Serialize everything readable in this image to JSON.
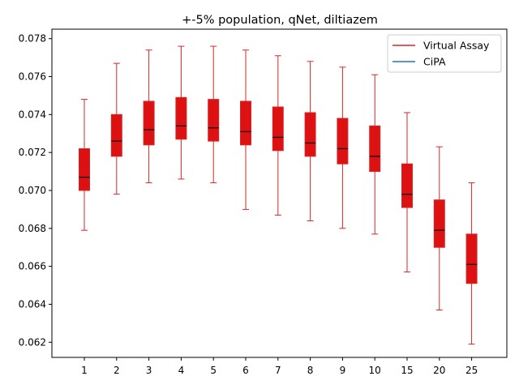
{
  "chart_data": {
    "type": "box",
    "title": "+-5% population, qNet, diltiazem",
    "xlabel": "",
    "ylabel": "",
    "categories": [
      "1",
      "2",
      "3",
      "4",
      "5",
      "6",
      "7",
      "8",
      "9",
      "10",
      "15",
      "20",
      "25"
    ],
    "ylim": [
      0.0612,
      0.0785
    ],
    "yticks": [
      0.062,
      0.064,
      0.066,
      0.068,
      0.07,
      0.072,
      0.074,
      0.076,
      0.078
    ],
    "ytick_labels": [
      "0.062",
      "0.064",
      "0.066",
      "0.068",
      "0.070",
      "0.072",
      "0.074",
      "0.076",
      "0.078"
    ],
    "grid": false,
    "legend": {
      "placement": "top-right",
      "entries": [
        {
          "name": "Virtual Assay",
          "color": "#d62728"
        },
        {
          "name": "CiPA",
          "color": "#1f77b4"
        }
      ]
    },
    "series": [
      {
        "name": "Virtual Assay",
        "color": "#d62728",
        "fill": "#dd1111",
        "median_color": "#000000",
        "boxes": [
          {
            "whislo": 0.0679,
            "q1": 0.07,
            "med": 0.0707,
            "q3": 0.0722,
            "whishi": 0.0748
          },
          {
            "whislo": 0.0698,
            "q1": 0.0718,
            "med": 0.0726,
            "q3": 0.074,
            "whishi": 0.0767
          },
          {
            "whislo": 0.0704,
            "q1": 0.0724,
            "med": 0.0732,
            "q3": 0.0747,
            "whishi": 0.0774
          },
          {
            "whislo": 0.0706,
            "q1": 0.0727,
            "med": 0.0734,
            "q3": 0.0749,
            "whishi": 0.0776
          },
          {
            "whislo": 0.0704,
            "q1": 0.0726,
            "med": 0.0733,
            "q3": 0.0748,
            "whishi": 0.0776
          },
          {
            "whislo": 0.069,
            "q1": 0.0724,
            "med": 0.0731,
            "q3": 0.0747,
            "whishi": 0.0774
          },
          {
            "whislo": 0.0687,
            "q1": 0.0721,
            "med": 0.0728,
            "q3": 0.0744,
            "whishi": 0.0771
          },
          {
            "whislo": 0.0684,
            "q1": 0.0718,
            "med": 0.0725,
            "q3": 0.0741,
            "whishi": 0.0768
          },
          {
            "whislo": 0.068,
            "q1": 0.0714,
            "med": 0.0722,
            "q3": 0.0738,
            "whishi": 0.0765
          },
          {
            "whislo": 0.0677,
            "q1": 0.071,
            "med": 0.0718,
            "q3": 0.0734,
            "whishi": 0.0761
          },
          {
            "whislo": 0.0657,
            "q1": 0.0691,
            "med": 0.0698,
            "q3": 0.0714,
            "whishi": 0.0741
          },
          {
            "whislo": 0.0637,
            "q1": 0.067,
            "med": 0.0679,
            "q3": 0.0695,
            "whishi": 0.0723
          },
          {
            "whislo": 0.0619,
            "q1": 0.0651,
            "med": 0.0661,
            "q3": 0.0677,
            "whishi": 0.0704
          }
        ]
      }
    ]
  }
}
